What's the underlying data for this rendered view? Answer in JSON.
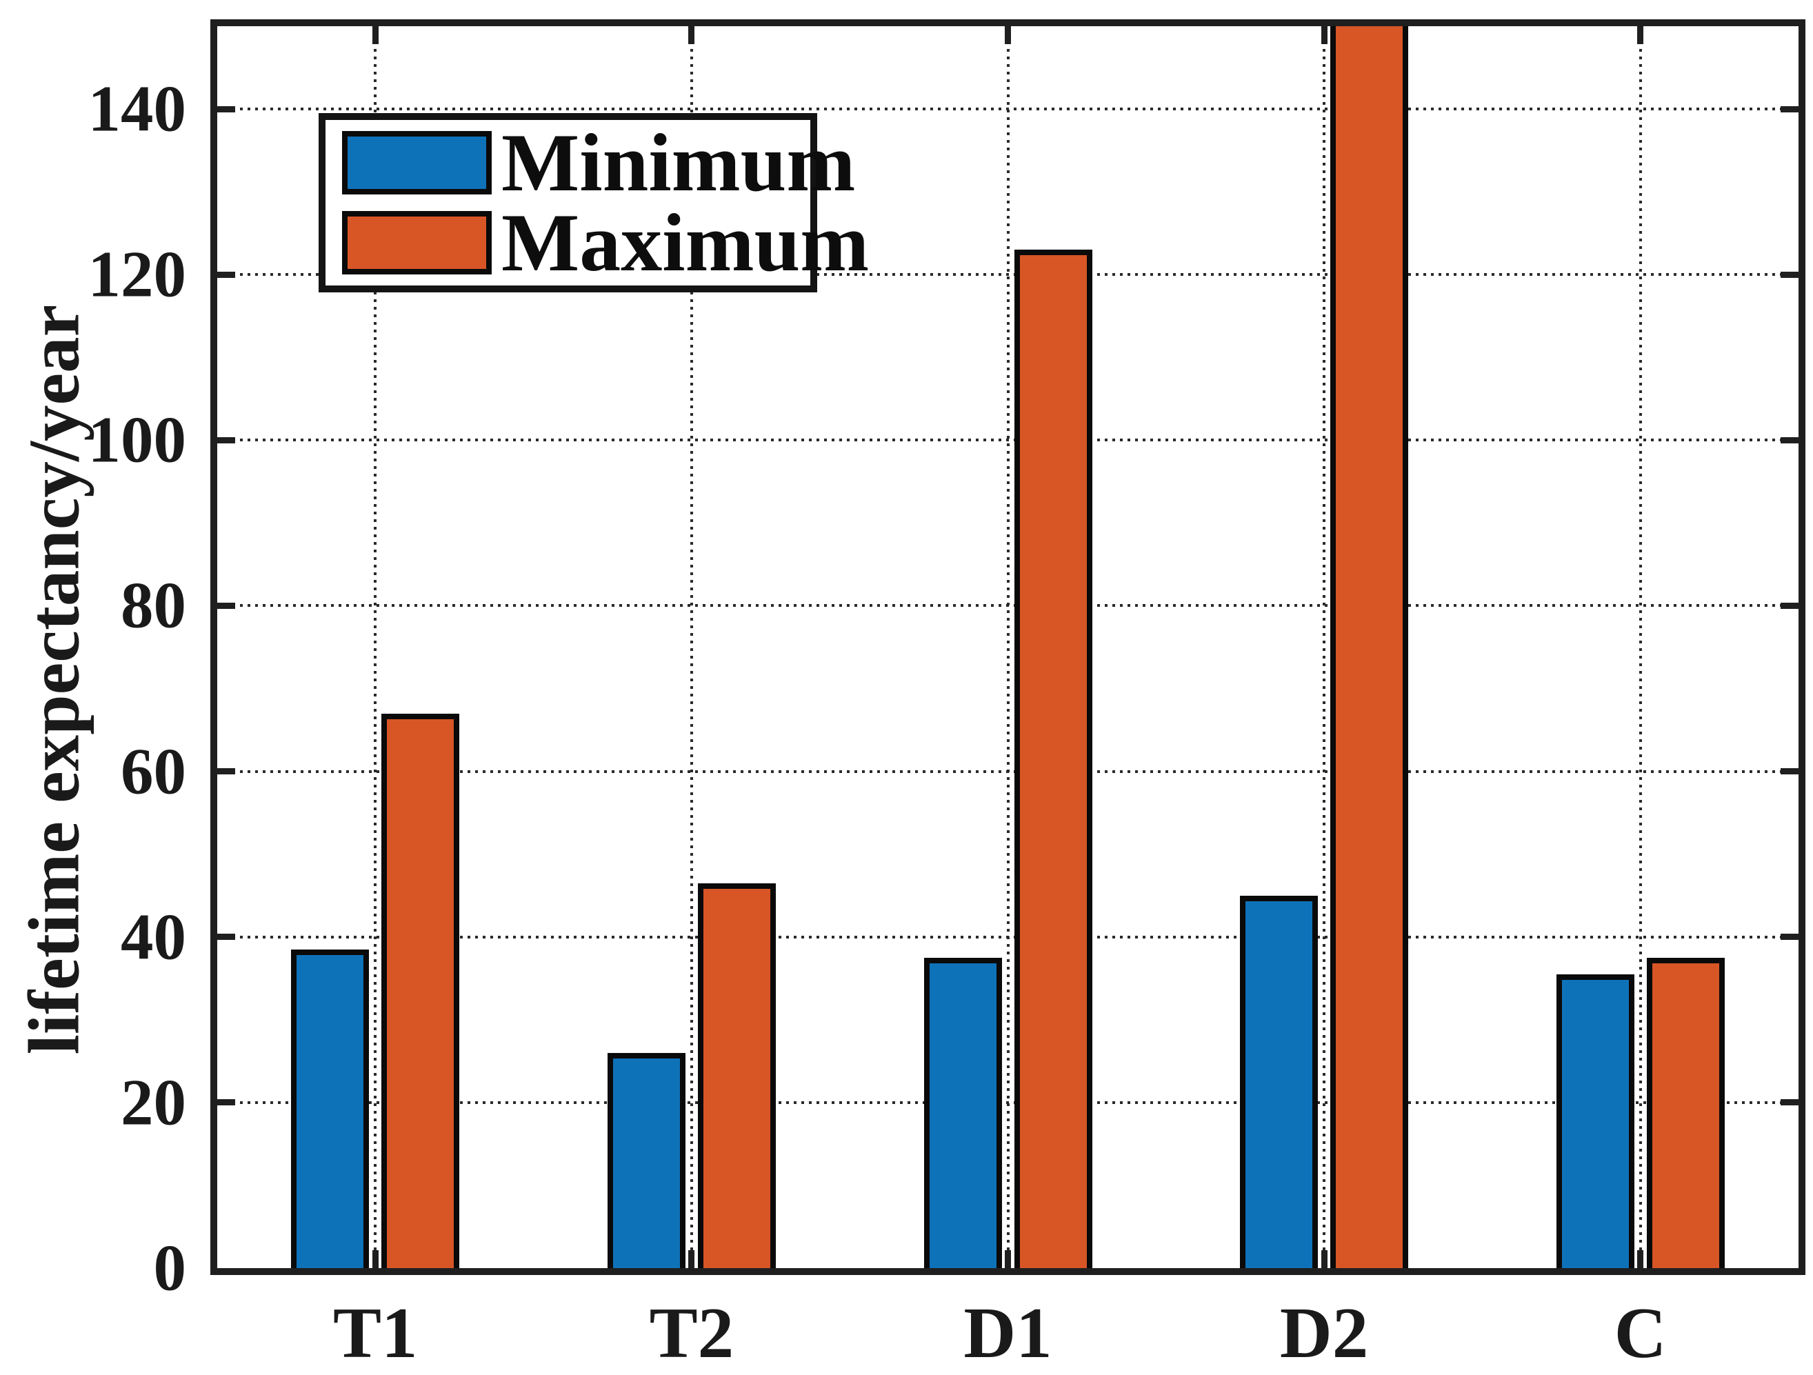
{
  "chart_data": {
    "type": "bar",
    "title": "",
    "xlabel": "",
    "ylabel": "lifetime expectancy/year",
    "categories": [
      "T1",
      "T2",
      "D1",
      "D2",
      "C"
    ],
    "series": [
      {
        "name": "Minimum",
        "color": "#0e72b8",
        "values": [
          38.5,
          26,
          37.5,
          45,
          35.5
        ],
        "clipped_at_top": [
          false,
          false,
          false,
          false,
          false
        ]
      },
      {
        "name": "Maximum",
        "color": "#d85526",
        "values": [
          67,
          46.5,
          123,
          150,
          37.5
        ],
        "clipped_at_top": [
          false,
          false,
          false,
          true,
          false
        ]
      }
    ],
    "ylim": [
      0,
      150
    ],
    "yticks": [
      0,
      20,
      40,
      60,
      80,
      100,
      120,
      140
    ],
    "grid": "dotted",
    "grid_color": "#2a2a2a",
    "axis_color": "#1f1f1f",
    "bar_edge_color": "#0a0a0a",
    "legend_position": "top-left",
    "legend_entries": [
      "Minimum",
      "Maximum"
    ]
  }
}
